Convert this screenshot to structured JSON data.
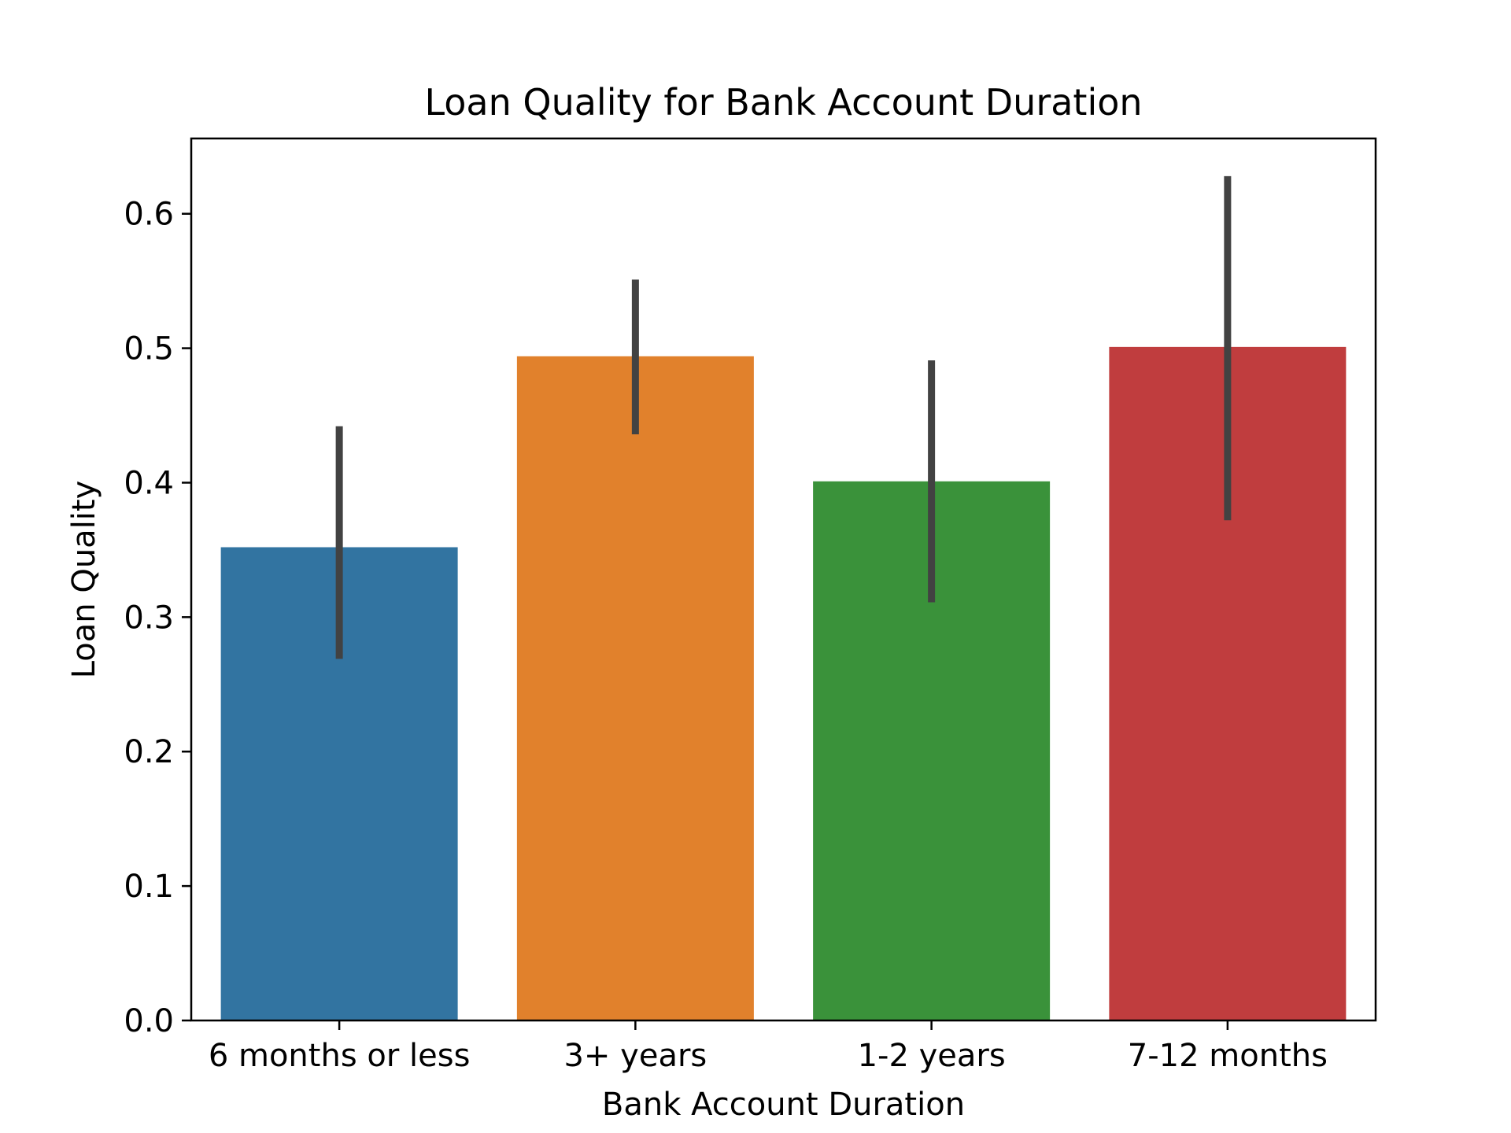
{
  "chart_data": {
    "type": "bar",
    "title": "Loan Quality for Bank Account Duration",
    "xlabel": "Bank Account Duration",
    "ylabel": "Loan Quality",
    "categories": [
      "6 months or less",
      "3+ years",
      "1-2 years",
      "7-12 months"
    ],
    "values": [
      0.352,
      0.494,
      0.401,
      0.501
    ],
    "error_bars": [
      {
        "low": 0.269,
        "high": 0.442
      },
      {
        "low": 0.436,
        "high": 0.551
      },
      {
        "low": 0.311,
        "high": 0.491
      },
      {
        "low": 0.372,
        "high": 0.628
      }
    ],
    "colors": [
      "#3274a1",
      "#e1812c",
      "#3a923a",
      "#c03d3e"
    ],
    "errorbar_color": "#424242",
    "ylim": [
      0,
      0.656
    ],
    "yticks": [
      "0.0",
      "0.1",
      "0.2",
      "0.3",
      "0.4",
      "0.5",
      "0.6"
    ],
    "grid": false,
    "legend": "none"
  }
}
